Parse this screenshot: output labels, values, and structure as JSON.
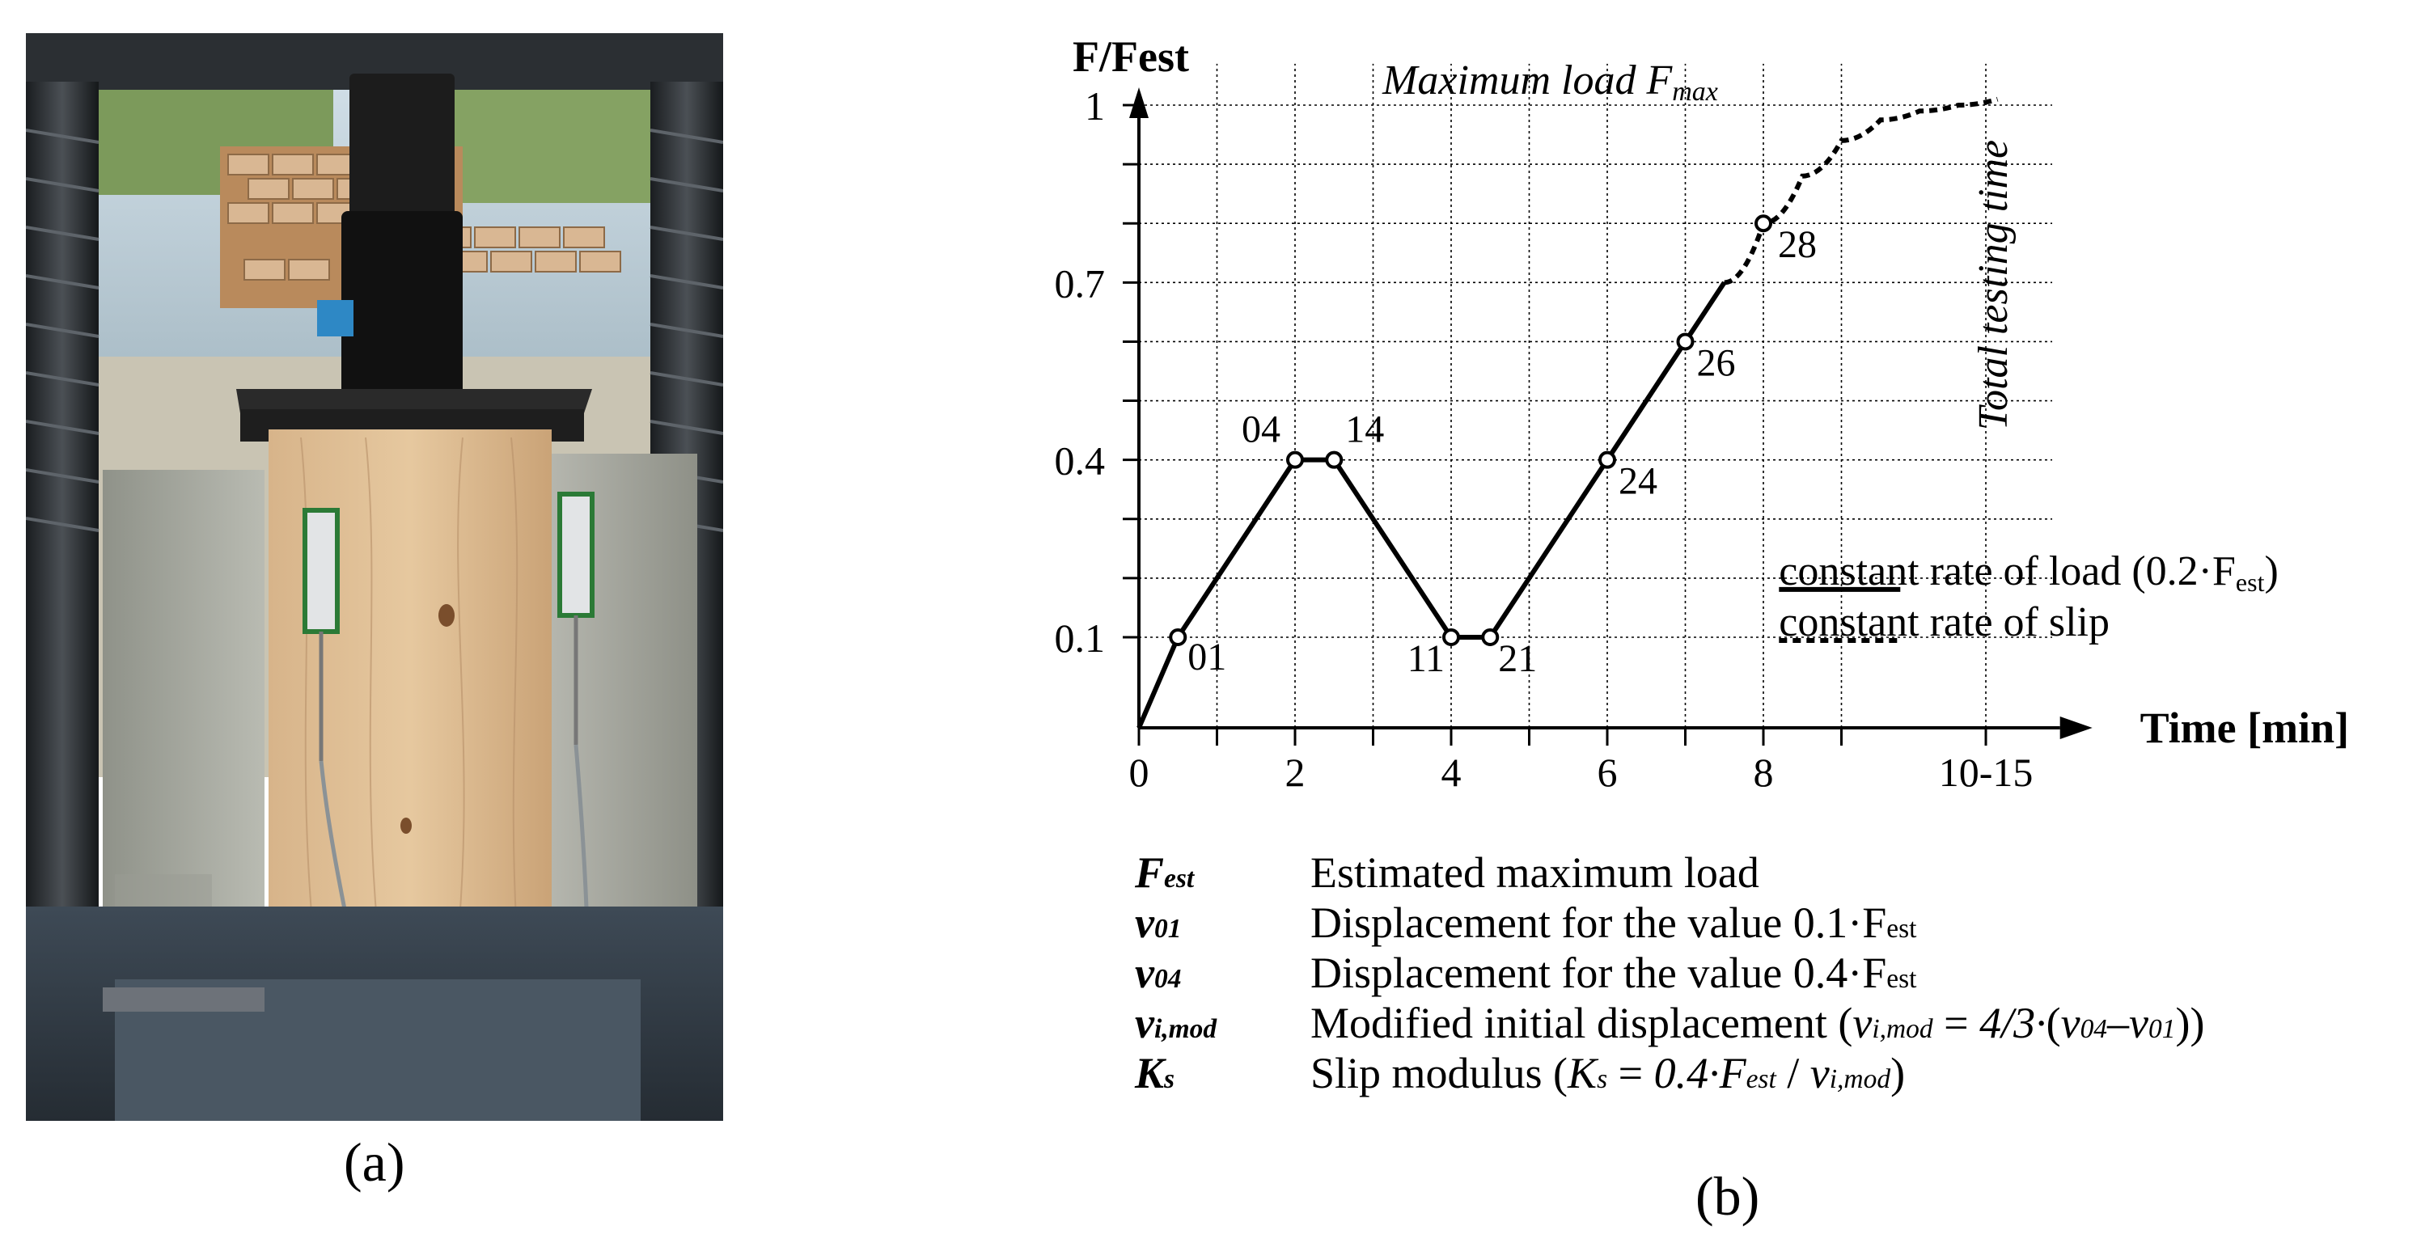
{
  "figure": {
    "panel_a_label": "(a)",
    "panel_b_label": "(b)",
    "photo_description": "Push-out shear test specimen: timber block between OSB/wood-wool blocks under a hydraulic press with displacement transducers"
  },
  "chart_data": {
    "type": "line",
    "ylabel": "F/Fest",
    "xlabel": "Time [min]",
    "y_ticks": [
      "0.1",
      "0.4",
      "0.7",
      "1"
    ],
    "x_ticks": [
      "0",
      "2",
      "4",
      "6",
      "8",
      "10-15"
    ],
    "annotation_top": "Maximum load F",
    "annotation_top_sub": "max",
    "annotation_vertical": "Total testing time",
    "load_path": {
      "x": [
        0,
        0.5,
        2,
        2.5,
        4,
        4.5,
        6,
        7,
        7.5
      ],
      "y": [
        0,
        0.1,
        0.4,
        0.4,
        0.1,
        0.1,
        0.4,
        0.6,
        0.7
      ]
    },
    "slip_path": {
      "x": [
        7.5,
        8,
        8.5,
        9,
        9.5,
        10,
        10.5,
        11
      ],
      "y": [
        0.7,
        0.8,
        0.88,
        0.94,
        0.975,
        0.99,
        1.0,
        1.01
      ]
    },
    "points": [
      {
        "label": "01",
        "x": 0.5,
        "y": 0.1
      },
      {
        "label": "04",
        "x": 2,
        "y": 0.4
      },
      {
        "label": "14",
        "x": 2.5,
        "y": 0.4
      },
      {
        "label": "11",
        "x": 4,
        "y": 0.1
      },
      {
        "label": "21",
        "x": 4.5,
        "y": 0.1
      },
      {
        "label": "24",
        "x": 6,
        "y": 0.4
      },
      {
        "label": "26",
        "x": 7,
        "y": 0.6
      },
      {
        "label": "28",
        "x": 8,
        "y": 0.8
      }
    ],
    "legend": [
      {
        "style": "solid",
        "prefix": "constant",
        "text": " rate of load (0.2·F",
        "sub": "est",
        "suffix": ")"
      },
      {
        "style": "dashed",
        "prefix": "constant",
        "text": " rate of slip",
        "sub": "",
        "suffix": ""
      }
    ]
  },
  "definitions": [
    {
      "sym": "F",
      "sub": "est",
      "text_html": "Estimated maximum load"
    },
    {
      "sym": "v",
      "sub": "01",
      "text_html": "Displacement for the value 0.1·F<span class=\"sub-n\">est</span>"
    },
    {
      "sym": "v",
      "sub": "04",
      "text_html": "Displacement for the value 0.4·F<span class=\"sub-n\">est</span>"
    },
    {
      "sym": "v",
      "sub": "i,mod",
      "text_html": "Modified initial displacement (<i>v</i><span class=\"sub-i\">i,mod</span> = <i>4/3·</i>(<i>v</i><span class=\"sub-i\">04</span>–<i>v</i><span class=\"sub-i\">01</span>))"
    },
    {
      "sym": "K",
      "sub": "s",
      "text_html": "Slip modulus (<i>K</i><span class=\"sub-i\">s</span> = <i>0.4·F</i><span class=\"sub-i\">est</span> / <i>v</i><span class=\"sub-i\">i,mod</span>)"
    }
  ],
  "colors": {
    "background": "#ffffff",
    "ink": "#000000",
    "grid": "#000000"
  }
}
